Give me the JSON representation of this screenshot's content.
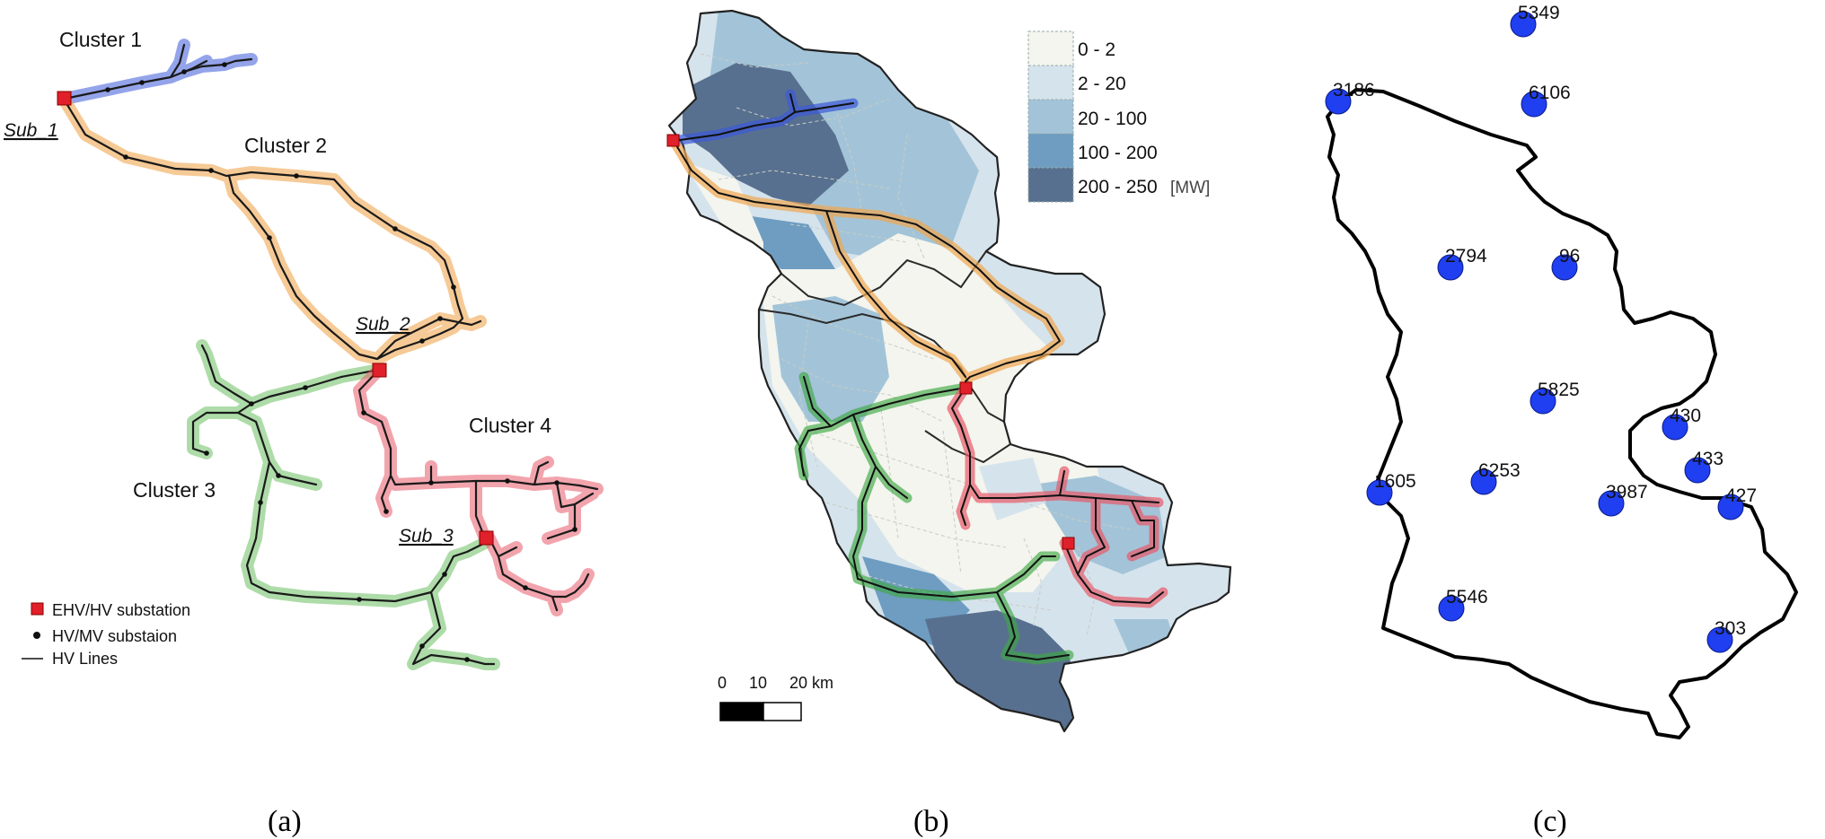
{
  "panel_a": {
    "caption": "(a)",
    "cluster_labels": [
      "Cluster 1",
      "Cluster 2",
      "Cluster 3",
      "Cluster 4"
    ],
    "substation_labels": [
      "Sub_1",
      "Sub_2",
      "Sub_3"
    ],
    "legend": {
      "ehv": "EHV/HV substation",
      "hvmv": "HV/MV substaion",
      "lines": "HV Lines"
    },
    "colors": {
      "cluster1": "#3c5ad8",
      "cluster2": "#f0a650",
      "cluster3": "#6cbf63",
      "cluster4": "#e75a6a",
      "substation": "#e0202a"
    }
  },
  "panel_b": {
    "caption": "(b)",
    "legend_bins": [
      "0 - 2",
      "2 - 20",
      "20 - 100",
      "100 - 200",
      "200 - 250"
    ],
    "legend_unit": "[MW]",
    "bin_colors": [
      "#f3f5ee",
      "#d5e3ec",
      "#a3c4d8",
      "#6e9dc1",
      "#58708f"
    ],
    "scale_ticks": [
      "0",
      "10",
      "20 km"
    ]
  },
  "panel_c": {
    "caption": "(c)",
    "point_labels": [
      "5349",
      "3186",
      "6106",
      "2794",
      "96",
      "5825",
      "430",
      "433",
      "1605",
      "6253",
      "3987",
      "427",
      "5546",
      "303"
    ],
    "point_color": "#1f3ff0"
  }
}
